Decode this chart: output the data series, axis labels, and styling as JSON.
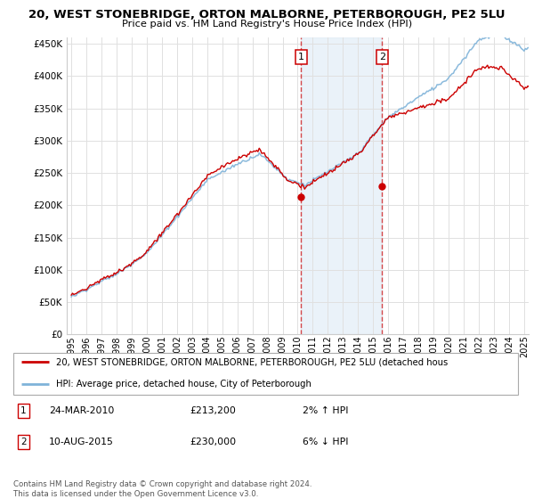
{
  "title": "20, WEST STONEBRIDGE, ORTON MALBORNE, PETERBOROUGH, PE2 5LU",
  "subtitle": "Price paid vs. HM Land Registry's House Price Index (HPI)",
  "ylabel_ticks": [
    "£0",
    "£50K",
    "£100K",
    "£150K",
    "£200K",
    "£250K",
    "£300K",
    "£350K",
    "£400K",
    "£450K"
  ],
  "ytick_values": [
    0,
    50000,
    100000,
    150000,
    200000,
    250000,
    300000,
    350000,
    400000,
    450000
  ],
  "ylim": [
    0,
    460000
  ],
  "xlim_start": 1994.7,
  "xlim_end": 2025.3,
  "xticks": [
    1995,
    1996,
    1997,
    1998,
    1999,
    2000,
    2001,
    2002,
    2003,
    2004,
    2005,
    2006,
    2007,
    2008,
    2009,
    2010,
    2011,
    2012,
    2013,
    2014,
    2015,
    2016,
    2017,
    2018,
    2019,
    2020,
    2021,
    2022,
    2023,
    2024,
    2025
  ],
  "hpi_color": "#7fb3d9",
  "sale_color": "#cc0000",
  "vline_color": "#cc0000",
  "vline_alpha": 0.7,
  "vline1_x": 2010.22,
  "vline2_x": 2015.6,
  "marker1_x": 2010.22,
  "marker1_y": 213200,
  "marker2_x": 2015.6,
  "marker2_y": 230000,
  "legend_sale_label": "20, WEST STONEBRIDGE, ORTON MALBORNE, PETERBOROUGH, PE2 5LU (detached hous",
  "legend_hpi_label": "HPI: Average price, detached house, City of Peterborough",
  "background_color": "#ffffff",
  "grid_color": "#e0e0e0",
  "highlight_fill": "#ddeaf5",
  "highlight_alpha": 0.6,
  "footer": "Contains HM Land Registry data © Crown copyright and database right 2024.\nThis data is licensed under the Open Government Licence v3.0."
}
